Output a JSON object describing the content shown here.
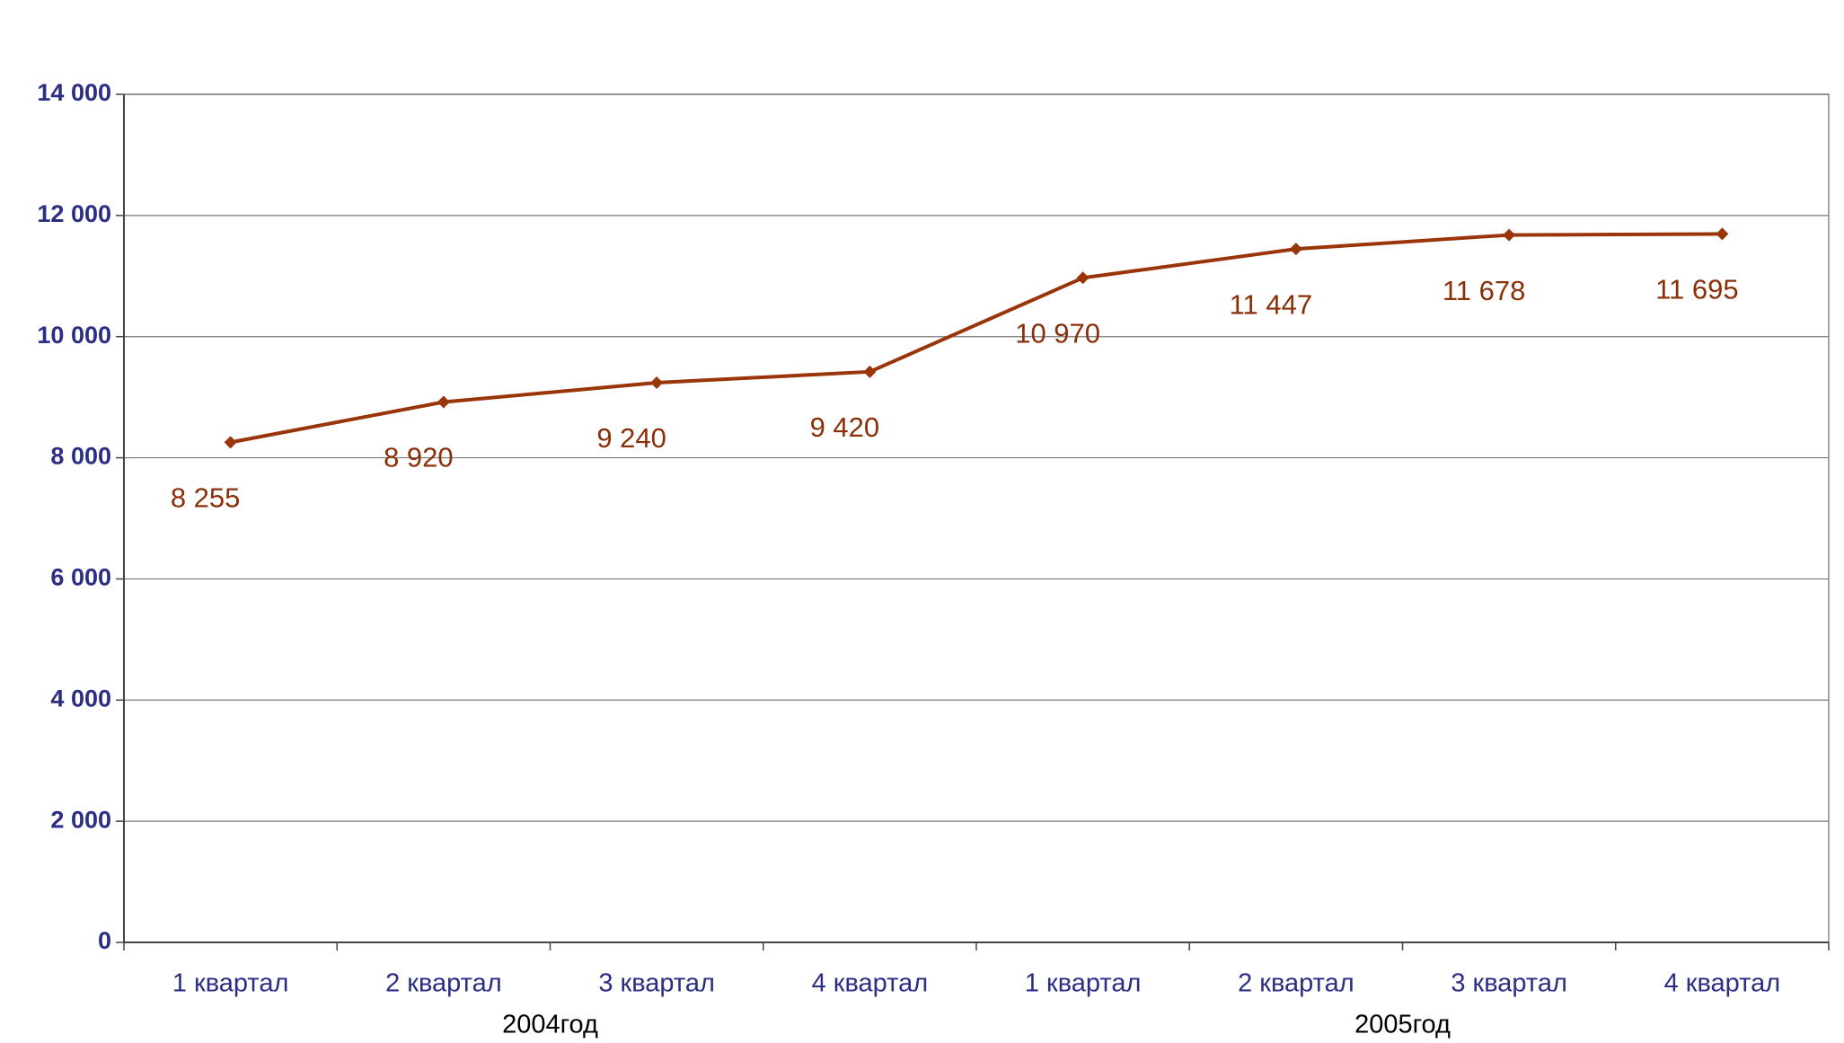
{
  "chart_data": {
    "type": "line",
    "categories": [
      "1 квартал",
      "2 квартал",
      "3 квартал",
      "4 квартал",
      "1 квартал",
      "2 квартал",
      "3 квартал",
      "4 квартал"
    ],
    "groups": [
      {
        "label": "2004год",
        "span": 4
      },
      {
        "label": "2005год",
        "span": 4
      }
    ],
    "series": [
      {
        "color": "#9a3409",
        "values": [
          8255,
          8920,
          9240,
          9420,
          10970,
          11447,
          11678,
          11695
        ],
        "value_labels": [
          "8 255",
          "8 920",
          "9 240",
          "9 420",
          "10 970",
          "11 447",
          "11 678",
          "11 695"
        ]
      }
    ],
    "ylim": [
      0,
      14000
    ],
    "yticks": [
      0,
      {
        "value": 2000,
        "label": "2 000"
      },
      {
        "value": 4000,
        "label": "4 000"
      },
      {
        "value": 6000,
        "label": "6 000"
      },
      {
        "value": 8000,
        "label": "8 000"
      },
      {
        "value": 10000,
        "label": "10 000"
      },
      {
        "value": 12000,
        "label": "12 000"
      },
      {
        "value": 14000,
        "label": "14 000"
      }
    ],
    "grid": true
  }
}
